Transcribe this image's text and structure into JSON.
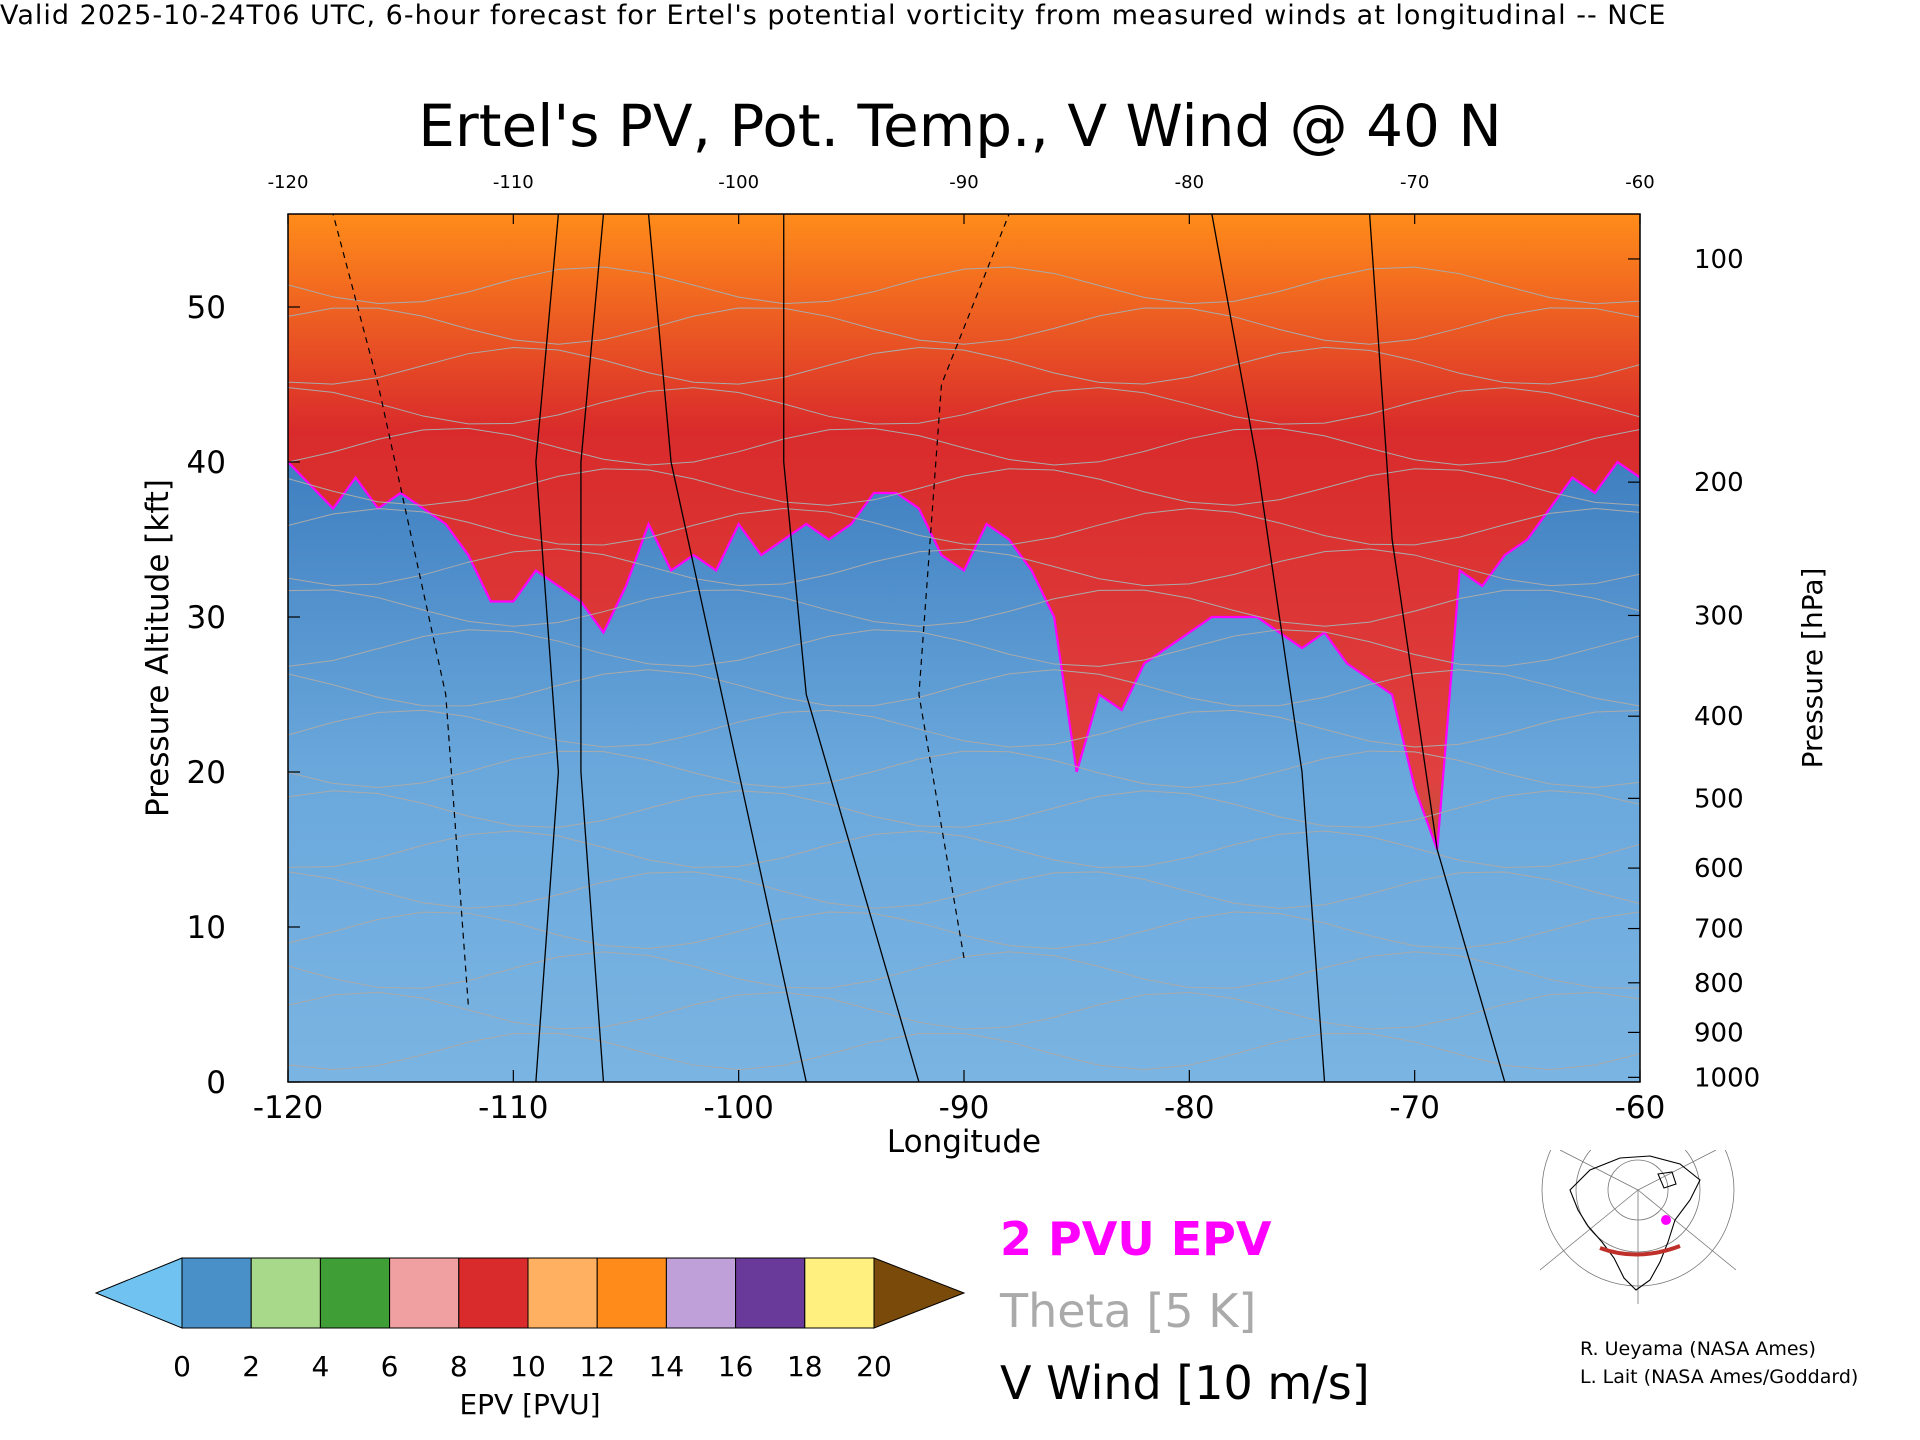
{
  "header": {
    "line": "Valid 2025-10-24T06 UTC, 6-hour forecast for Ertel's potential vorticity from measured winds at longitudinal -- NCE"
  },
  "chart_data": {
    "type": "heatmap",
    "title": "Ertel's PV, Pot. Temp., V Wind @ 40 N",
    "xlabel": "Longitude",
    "ylabel": "Pressure Altitude [kft]",
    "ylabel_right": "Pressure [hPa]",
    "xlim": [
      -120,
      -60
    ],
    "ylim": [
      0,
      56
    ],
    "x_ticks": [
      -120,
      -110,
      -100,
      -90,
      -80,
      -70,
      -60
    ],
    "x_tick_labels": [
      "-120",
      "-110",
      "-100",
      "-90",
      "-80",
      "-70",
      "-60"
    ],
    "top_ticks": [
      -120,
      -110,
      -100,
      -90,
      -80,
      -70,
      -60
    ],
    "top_tick_labels": [
      "-120",
      "-110",
      "-100",
      "-90",
      "-80",
      "-70",
      "-60"
    ],
    "y_ticks": [
      0,
      10,
      20,
      30,
      40,
      50
    ],
    "y_tick_labels": [
      "0",
      "10",
      "20",
      "30",
      "40",
      "50"
    ],
    "pressure_ticks": [
      {
        "label": "100",
        "kft": 53.1
      },
      {
        "label": "200",
        "kft": 38.7
      },
      {
        "label": "300",
        "kft": 30.1
      },
      {
        "label": "400",
        "kft": 23.6
      },
      {
        "label": "500",
        "kft": 18.3
      },
      {
        "label": "600",
        "kft": 13.8
      },
      {
        "label": "700",
        "kft": 9.9
      },
      {
        "label": "800",
        "kft": 6.4
      },
      {
        "label": "900",
        "kft": 3.2
      },
      {
        "label": "1000",
        "kft": 0.3
      }
    ],
    "tropopause_2pvu_kft": {
      "x": [
        -120,
        -118,
        -117,
        -116,
        -115,
        -114,
        -113,
        -112,
        -111,
        -110,
        -109,
        -108,
        -107,
        -106,
        -105,
        -104,
        -103,
        -102,
        -101,
        -100,
        -99,
        -98,
        -97,
        -96,
        -95,
        -94,
        -93,
        -92,
        -91,
        -90,
        -89,
        -88,
        -87,
        -86,
        -85,
        -84,
        -83,
        -82,
        -81,
        -80,
        -79,
        -78,
        -77,
        -76,
        -75,
        -74,
        -73,
        -72,
        -71,
        -70,
        -69,
        -68,
        -67,
        -66,
        -65,
        -64,
        -63,
        -62,
        -61,
        -60
      ],
      "y": [
        40,
        37,
        39,
        37,
        38,
        37,
        36,
        34,
        31,
        31,
        33,
        32,
        31,
        29,
        32,
        36,
        33,
        34,
        33,
        36,
        34,
        35,
        36,
        35,
        36,
        38,
        38,
        37,
        34,
        33,
        36,
        35,
        33,
        30,
        20,
        25,
        24,
        27,
        28,
        29,
        30,
        30,
        30,
        29,
        28,
        29,
        27,
        26,
        25,
        19,
        15,
        33,
        32,
        34,
        35,
        37,
        39,
        38,
        40,
        39
      ]
    },
    "color_scale": {
      "label": "EPV [PVU]",
      "ticks": [
        "0",
        "2",
        "4",
        "6",
        "8",
        "10",
        "12",
        "14",
        "16",
        "18",
        "20"
      ],
      "colors": [
        "#70c2f0",
        "#4a90c8",
        "#a8d88a",
        "#3f9e35",
        "#f0a0a0",
        "#d92b2b",
        "#ffb060",
        "#ff8c1a",
        "#c0a0d8",
        "#6a3a9a",
        "#fff080",
        "#7a4a0a"
      ]
    },
    "legend": [
      {
        "label": "2 PVU EPV",
        "color": "#ff00ff"
      },
      {
        "label": "Theta [5 K]",
        "color": "#aaaaaa"
      },
      {
        "label": "V Wind [10 m/s]",
        "color": "#000000"
      }
    ]
  },
  "credits": {
    "line1": "R. Ueyama (NASA Ames)",
    "line2": "L. Lait (NASA Ames/Goddard)"
  },
  "colors": {
    "tropopause": "#ff00ff",
    "theta": "#aaaaaa",
    "wind": "#000000",
    "stratosphere": "#d92b2b",
    "troposphere": "#6aa8dc"
  }
}
